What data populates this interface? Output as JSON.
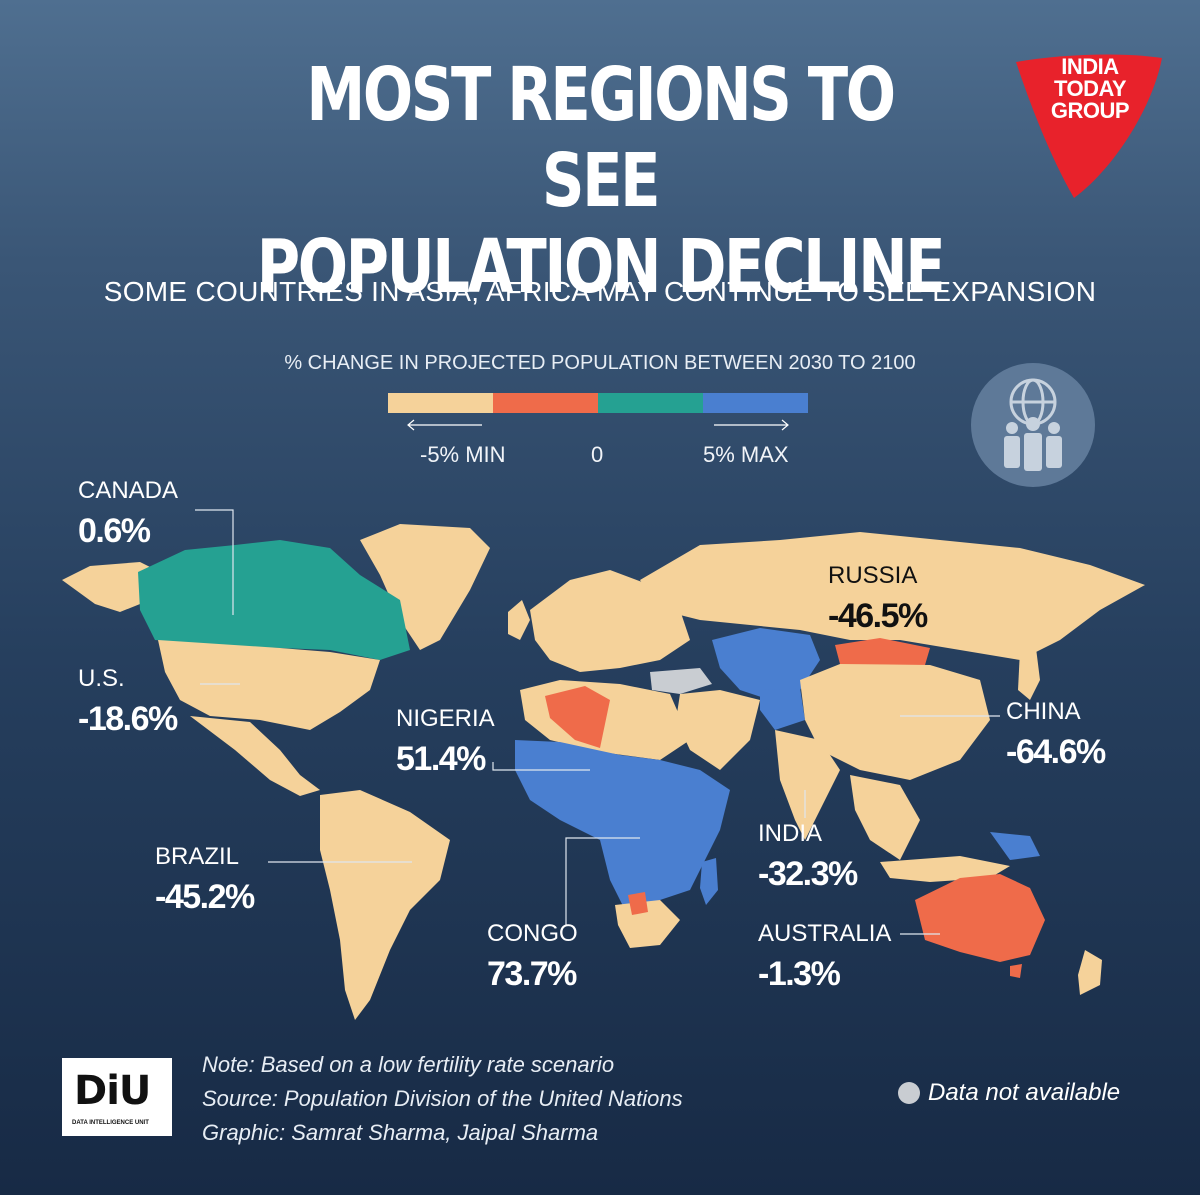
{
  "header": {
    "title_line1": "MOST REGIONS TO SEE",
    "title_line2": "POPULATION DECLINE",
    "subtitle": "SOME COUNTRIES IN ASIA, AFRICA MAY CONTINUE TO SEE EXPANSION",
    "logo_line1": "INDIA",
    "logo_line2": "TODAY",
    "logo_line3": "GROUP"
  },
  "legend": {
    "title": "% CHANGE IN PROJECTED POPULATION BETWEEN 2030 TO 2100",
    "min_label": "-5% MIN",
    "zero_label": "0",
    "max_label": "5% MAX",
    "colors": [
      "#f5d29a",
      "#ef6b4a",
      "#25a192",
      "#4a7fd0"
    ]
  },
  "countries": [
    {
      "name": "CANADA",
      "value": "0.6%"
    },
    {
      "name": "U.S.",
      "value": "-18.6%"
    },
    {
      "name": "BRAZIL",
      "value": "-45.2%"
    },
    {
      "name": "NIGERIA",
      "value": "51.4%"
    },
    {
      "name": "CONGO",
      "value": "73.7%"
    },
    {
      "name": "RUSSIA",
      "value": "-46.5%"
    },
    {
      "name": "CHINA",
      "value": "-64.6%"
    },
    {
      "name": "INDIA",
      "value": "-32.3%"
    },
    {
      "name": "AUSTRALIA",
      "value": "-1.3%"
    }
  ],
  "footer": {
    "note": "Note: Based on a low fertility rate scenario",
    "source": "Source: Population Division of the United Nations",
    "graphic": "Graphic: Samrat Sharma, Jaipal Sharma",
    "diu_logo": "DiU",
    "diu_sub": "DATA INTELLIGENCE UNIT",
    "na_label": "Data not available"
  },
  "colors": {
    "sand": "#f5d29a",
    "coral": "#ef6b4a",
    "teal": "#25a192",
    "blue": "#4a7fd0",
    "na_gray": "#c9cdd2",
    "brand_red": "#e8222b"
  }
}
